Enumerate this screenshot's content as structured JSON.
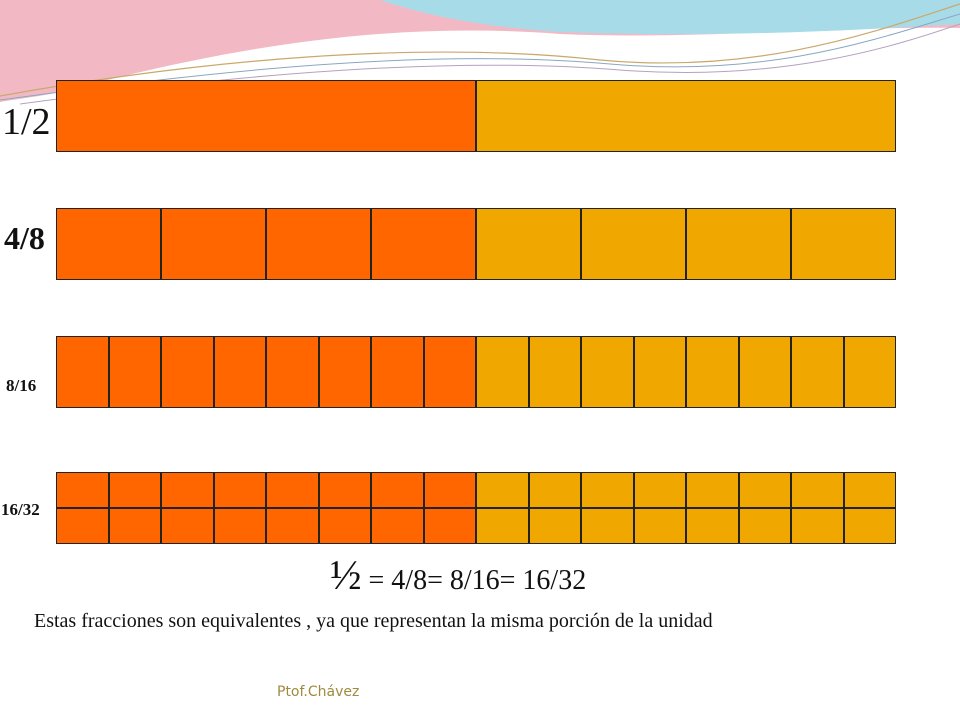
{
  "rows": [
    {
      "label": "1/2",
      "numerator": 1,
      "denominator": 2
    },
    {
      "label": "4/8",
      "numerator": 4,
      "denominator": 8
    },
    {
      "label": "8/16",
      "numerator": 8,
      "denominator": 16
    },
    {
      "label": "16/32",
      "numerator": 16,
      "denominator": 32
    }
  ],
  "colors": {
    "shaded": "#ff6600",
    "unshaded": "#f0a800"
  },
  "equation": {
    "half": "½",
    "rest": " = 4/8= 8/16= 16/32"
  },
  "conclusion": "Estas fracciones son equivalentes , ya que representan la misma porción de la unidad",
  "author": "Ptof.Chávez"
}
